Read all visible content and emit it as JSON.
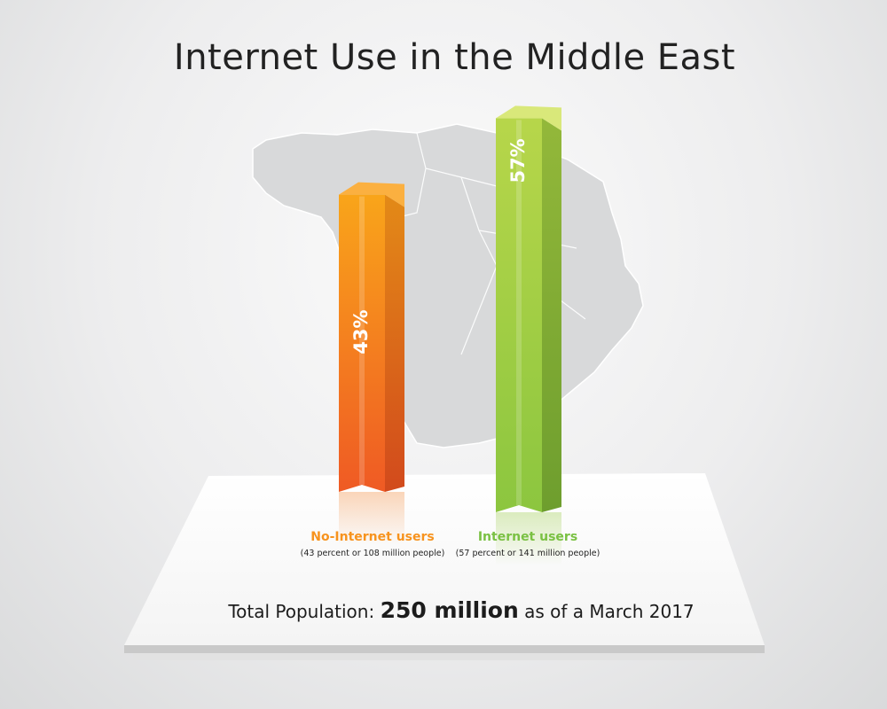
{
  "chart_data": {
    "type": "bar",
    "title": "Internet Use in the Middle East",
    "categories": [
      "No-Internet users",
      "Internet users"
    ],
    "values": [
      43,
      57
    ],
    "value_labels": [
      "43%",
      "57%"
    ],
    "descriptions": [
      "(43 percent or 108 million people)",
      "(57 percent or 141 million people)"
    ],
    "colors": {
      "no_internet": "#f07d1c",
      "internet": "#8cc63f"
    },
    "ylim": [
      0,
      100
    ]
  },
  "footer": {
    "prefix": "Total Population:",
    "value": "250 million",
    "suffix": "as of a March 2017"
  }
}
